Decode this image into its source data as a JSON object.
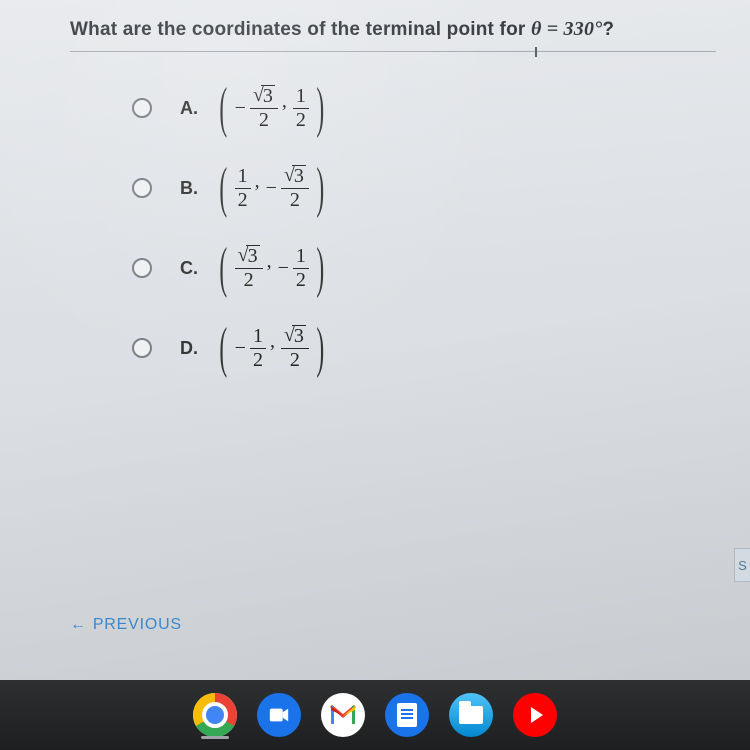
{
  "question": {
    "prefix": "What are the coordinates of the terminal point for ",
    "theta_var": "θ",
    "eq": " = 330°",
    "suffix": "?"
  },
  "options": [
    {
      "label": "A.",
      "lead_neg": true,
      "n1_sqrt": "3",
      "n1_plain": null,
      "d1": "2",
      "mid_neg": false,
      "n2_sqrt": null,
      "n2_plain": "1",
      "d2": "2"
    },
    {
      "label": "B.",
      "lead_neg": false,
      "n1_sqrt": null,
      "n1_plain": "1",
      "d1": "2",
      "mid_neg": true,
      "n2_sqrt": "3",
      "n2_plain": null,
      "d2": "2"
    },
    {
      "label": "C.",
      "lead_neg": false,
      "n1_sqrt": "3",
      "n1_plain": null,
      "d1": "2",
      "mid_neg": true,
      "n2_sqrt": null,
      "n2_plain": "1",
      "d2": "2"
    },
    {
      "label": "D.",
      "lead_neg": true,
      "n1_sqrt": null,
      "n1_plain": "1",
      "d1": "2",
      "mid_neg": false,
      "n2_sqrt": "3",
      "n2_plain": null,
      "d2": "2"
    }
  ],
  "nav": {
    "previous": "PREVIOUS"
  },
  "save_slice": "S",
  "colors": {
    "page_bg": "#e1e4e8",
    "text": "#333333",
    "accent": "#3b8dd6",
    "shelf": "#232426"
  }
}
